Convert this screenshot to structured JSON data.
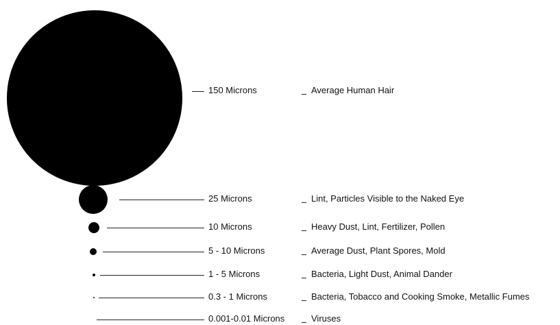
{
  "particles": [
    {
      "size": "150 Microns",
      "description": "Average Human Hair"
    },
    {
      "size": "25 Microns",
      "description": "Lint, Particles Visible to the Naked Eye"
    },
    {
      "size": "10 Microns",
      "description": "Heavy Dust, Lint, Fertilizer, Pollen"
    },
    {
      "size": "5 - 10 Microns",
      "description": "Average Dust, Plant Spores, Mold"
    },
    {
      "size": "1 - 5 Microns",
      "description": "Bacteria, Light Dust, Animal Dander"
    },
    {
      "size": "0.3 - 1 Microns",
      "description": "Bacteria, Tobacco and Cooking Smoke, Metallic Fumes"
    },
    {
      "size": "0.001-0.01 Microns",
      "description": "Viruses"
    }
  ],
  "colors": {
    "dot": "#000000",
    "text": "#111111"
  }
}
